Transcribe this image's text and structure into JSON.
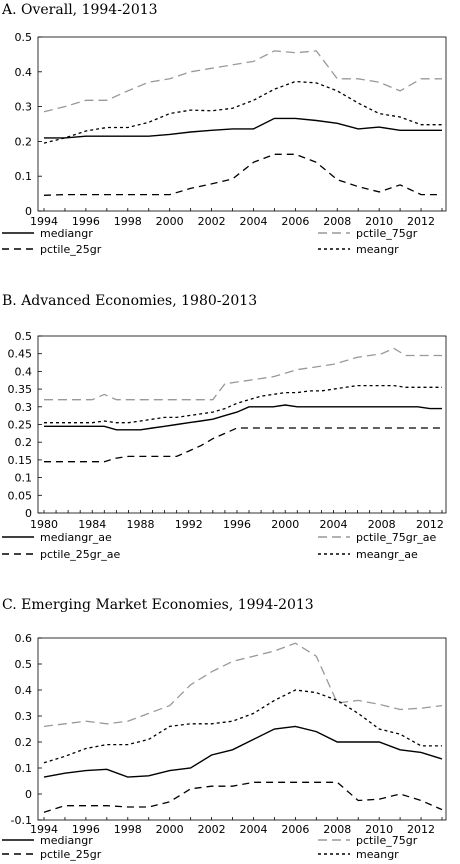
{
  "chart_data": [
    {
      "type": "line",
      "title": "A. Overall, 1994-2013",
      "x": [
        1994,
        1995,
        1996,
        1997,
        1998,
        1999,
        2000,
        2001,
        2002,
        2003,
        2004,
        2005,
        2006,
        2007,
        2008,
        2009,
        2010,
        2011,
        2012,
        2013
      ],
      "x_ticks": [
        1994,
        1996,
        1998,
        2000,
        2002,
        2004,
        2006,
        2008,
        2010,
        2012
      ],
      "ylim": [
        0,
        0.5
      ],
      "y_ticks": [
        0,
        0.1,
        0.2,
        0.3,
        0.4,
        0.5
      ],
      "series": [
        {
          "name": "mediangr",
          "style": "solid",
          "color": "#000000",
          "values": [
            0.21,
            0.21,
            0.215,
            0.215,
            0.215,
            0.215,
            0.22,
            0.227,
            0.232,
            0.236,
            0.236,
            0.266,
            0.266,
            0.26,
            0.252,
            0.236,
            0.241,
            0.232,
            0.232,
            0.232
          ]
        },
        {
          "name": "pctile_75gr",
          "style": "longdash",
          "color": "#999999",
          "values": [
            0.285,
            0.3,
            0.318,
            0.318,
            0.345,
            0.37,
            0.38,
            0.4,
            0.41,
            0.42,
            0.43,
            0.46,
            0.455,
            0.46,
            0.38,
            0.38,
            0.37,
            0.345,
            0.38,
            0.38
          ]
        },
        {
          "name": "pctile_25gr",
          "style": "dash",
          "color": "#000000",
          "values": [
            0.045,
            0.047,
            0.047,
            0.047,
            0.047,
            0.047,
            0.047,
            0.065,
            0.078,
            0.092,
            0.14,
            0.163,
            0.163,
            0.14,
            0.09,
            0.07,
            0.055,
            0.075,
            0.047,
            0.047
          ]
        },
        {
          "name": "meangr",
          "style": "dot",
          "color": "#000000",
          "values": [
            0.195,
            0.21,
            0.23,
            0.24,
            0.24,
            0.255,
            0.28,
            0.29,
            0.288,
            0.295,
            0.318,
            0.35,
            0.372,
            0.368,
            0.345,
            0.31,
            0.28,
            0.27,
            0.248,
            0.248
          ]
        }
      ]
    },
    {
      "type": "line",
      "title": "B. Advanced Economies, 1980-2013",
      "x": [
        1980,
        1981,
        1982,
        1983,
        1984,
        1985,
        1986,
        1987,
        1988,
        1989,
        1990,
        1991,
        1992,
        1993,
        1994,
        1995,
        1996,
        1997,
        1998,
        1999,
        2000,
        2001,
        2002,
        2003,
        2004,
        2005,
        2006,
        2007,
        2008,
        2009,
        2010,
        2011,
        2012,
        2013
      ],
      "x_ticks": [
        1980,
        1984,
        1988,
        1992,
        1996,
        2000,
        2004,
        2008,
        2012
      ],
      "ylim": [
        0,
        0.5
      ],
      "y_ticks": [
        0,
        0.05,
        0.1,
        0.15,
        0.2,
        0.25,
        0.3,
        0.35,
        0.4,
        0.45,
        0.5
      ],
      "series": [
        {
          "name": "mediangr_ae",
          "style": "solid",
          "color": "#000000",
          "values": [
            0.245,
            0.245,
            0.245,
            0.245,
            0.245,
            0.245,
            0.235,
            0.235,
            0.235,
            0.24,
            0.245,
            0.25,
            0.255,
            0.26,
            0.265,
            0.275,
            0.285,
            0.3,
            0.3,
            0.3,
            0.305,
            0.3,
            0.3,
            0.3,
            0.3,
            0.3,
            0.3,
            0.3,
            0.3,
            0.3,
            0.3,
            0.3,
            0.295,
            0.295
          ]
        },
        {
          "name": "pctile_75gr_ae",
          "style": "longdash",
          "color": "#999999",
          "values": [
            0.32,
            0.32,
            0.32,
            0.32,
            0.32,
            0.335,
            0.32,
            0.32,
            0.32,
            0.32,
            0.32,
            0.32,
            0.32,
            0.32,
            0.32,
            0.365,
            0.37,
            0.375,
            0.38,
            0.385,
            0.395,
            0.405,
            0.41,
            0.415,
            0.42,
            0.43,
            0.44,
            0.445,
            0.45,
            0.465,
            0.445,
            0.445,
            0.445,
            0.445
          ]
        },
        {
          "name": "pctile_25gr_ae",
          "style": "dash",
          "color": "#000000",
          "values": [
            0.145,
            0.145,
            0.145,
            0.145,
            0.145,
            0.145,
            0.155,
            0.16,
            0.16,
            0.16,
            0.16,
            0.16,
            0.175,
            0.19,
            0.21,
            0.225,
            0.24,
            0.24,
            0.24,
            0.24,
            0.24,
            0.24,
            0.24,
            0.24,
            0.24,
            0.24,
            0.24,
            0.24,
            0.24,
            0.24,
            0.24,
            0.24,
            0.24,
            0.24
          ]
        },
        {
          "name": "meangr_ae",
          "style": "dot",
          "color": "#000000",
          "values": [
            0.255,
            0.255,
            0.255,
            0.255,
            0.255,
            0.26,
            0.255,
            0.255,
            0.26,
            0.265,
            0.27,
            0.27,
            0.275,
            0.28,
            0.285,
            0.295,
            0.31,
            0.32,
            0.33,
            0.335,
            0.34,
            0.34,
            0.345,
            0.345,
            0.35,
            0.355,
            0.36,
            0.36,
            0.36,
            0.36,
            0.355,
            0.355,
            0.355,
            0.355
          ]
        }
      ]
    },
    {
      "type": "line",
      "title": "C. Emerging Market Economies, 1994-2013",
      "x": [
        1994,
        1995,
        1996,
        1997,
        1998,
        1999,
        2000,
        2001,
        2002,
        2003,
        2004,
        2005,
        2006,
        2007,
        2008,
        2009,
        2010,
        2011,
        2012,
        2013
      ],
      "x_ticks": [
        1994,
        1996,
        1998,
        2000,
        2002,
        2004,
        2006,
        2008,
        2010,
        2012
      ],
      "ylim": [
        -0.1,
        0.6
      ],
      "y_ticks": [
        -0.1,
        0,
        0.1,
        0.2,
        0.3,
        0.4,
        0.5,
        0.6
      ],
      "series": [
        {
          "name": "mediangr",
          "style": "solid",
          "color": "#000000",
          "values": [
            0.065,
            0.08,
            0.09,
            0.095,
            0.065,
            0.07,
            0.09,
            0.1,
            0.15,
            0.17,
            0.21,
            0.25,
            0.26,
            0.24,
            0.2,
            0.2,
            0.2,
            0.17,
            0.16,
            0.135
          ]
        },
        {
          "name": "pctile_75gr",
          "style": "longdash",
          "color": "#999999",
          "values": [
            0.26,
            0.27,
            0.28,
            0.27,
            0.28,
            0.31,
            0.34,
            0.42,
            0.47,
            0.51,
            0.53,
            0.55,
            0.58,
            0.53,
            0.35,
            0.36,
            0.345,
            0.325,
            0.33,
            0.34
          ]
        },
        {
          "name": "pctile_25gr",
          "style": "dash",
          "color": "#000000",
          "values": [
            -0.07,
            -0.045,
            -0.045,
            -0.045,
            -0.05,
            -0.05,
            -0.03,
            0.02,
            0.03,
            0.03,
            0.045,
            0.045,
            0.045,
            0.045,
            0.045,
            -0.025,
            -0.02,
            0.0,
            -0.025,
            -0.06
          ]
        },
        {
          "name": "meangr",
          "style": "dot",
          "color": "#000000",
          "values": [
            0.12,
            0.145,
            0.175,
            0.19,
            0.19,
            0.21,
            0.26,
            0.27,
            0.27,
            0.28,
            0.31,
            0.36,
            0.4,
            0.39,
            0.36,
            0.31,
            0.25,
            0.23,
            0.185,
            0.185
          ]
        }
      ]
    }
  ]
}
